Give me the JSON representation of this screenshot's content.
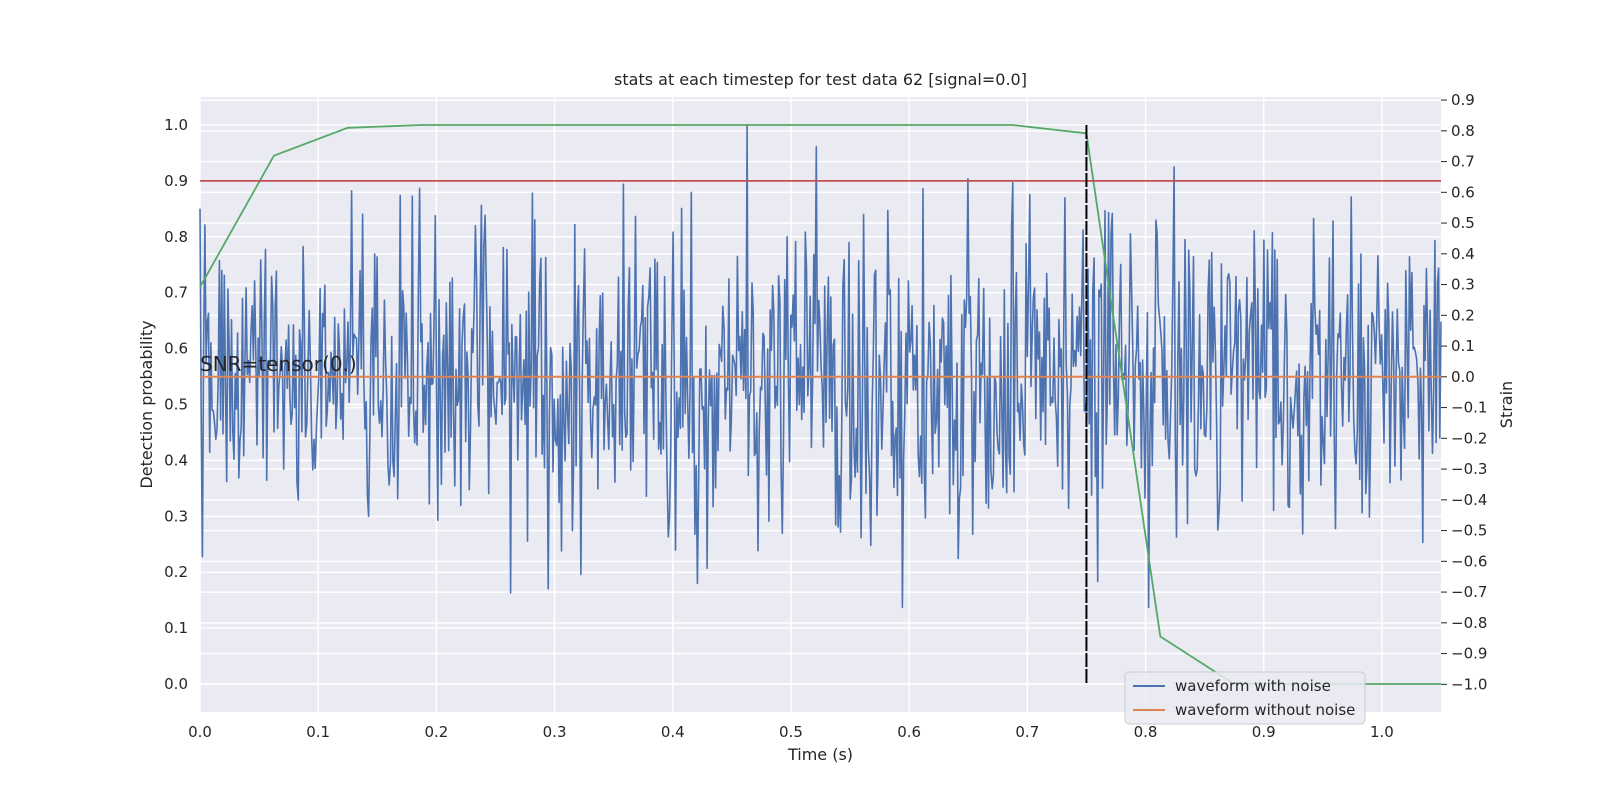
{
  "chart_data": {
    "type": "line",
    "title": "stats at each timestep for test data 62 [signal=0.0]",
    "xlabel": "Time (s)",
    "ylabel": "Detection probability",
    "ylabel_right": "Strain",
    "xlim": [
      0.0,
      1.05
    ],
    "ylim": [
      -0.05,
      1.05
    ],
    "ylim_right": [
      -1.09,
      0.91
    ],
    "x_ticks": [
      "0.0",
      "0.1",
      "0.2",
      "0.3",
      "0.4",
      "0.5",
      "0.6",
      "0.7",
      "0.8",
      "0.9",
      "1.0"
    ],
    "y_ticks": [
      "0.0",
      "0.1",
      "0.2",
      "0.3",
      "0.4",
      "0.5",
      "0.6",
      "0.7",
      "0.8",
      "0.9",
      "1.0"
    ],
    "y_ticks_right": [
      "−1.0",
      "−0.9",
      "−0.8",
      "−0.7",
      "−0.6",
      "−0.5",
      "−0.4",
      "−0.3",
      "−0.2",
      "−0.1",
      "0.0",
      "0.1",
      "0.2",
      "0.3",
      "0.4",
      "0.5",
      "0.6",
      "0.7",
      "0.8",
      "0.9"
    ],
    "grid": true,
    "legend_position": "lower-right",
    "annotation": "SNR=tensor(0.)",
    "threshold": 0.9,
    "vline_x": 0.75,
    "series": [
      {
        "name": "waveform with noise",
        "axis": "right",
        "color": "#4c72b0",
        "note": "noisy strain, approximately zero-mean with std ~0.25, range -0.75 to 0.82",
        "x_range": [
          0.0,
          1.05
        ],
        "samples": 1024,
        "min": -0.75,
        "max": 0.82
      },
      {
        "name": "waveform without noise",
        "axis": "right",
        "color": "#dd8452",
        "x": [
          0.0,
          1.05
        ],
        "y": [
          0.0,
          0.0
        ]
      },
      {
        "axis": "left",
        "color": "#55a868",
        "x": [
          0.0,
          0.0625,
          0.125,
          0.1875,
          0.25,
          0.3125,
          0.375,
          0.4375,
          0.5,
          0.5625,
          0.625,
          0.6875,
          0.75,
          0.8125,
          0.875,
          0.9375,
          1.0,
          1.05
        ],
        "y": [
          0.71,
          0.945,
          0.995,
          1.0,
          1.0,
          1.0,
          1.0,
          1.0,
          1.0,
          1.0,
          1.0,
          1.0,
          0.985,
          0.085,
          0.0,
          0.0,
          0.0,
          0.0
        ]
      },
      {
        "axis": "left",
        "color": "#c44e52",
        "x": [
          0.0,
          1.05
        ],
        "y": [
          0.9,
          0.9
        ]
      }
    ]
  },
  "legend": {
    "items": [
      {
        "label": "waveform with noise",
        "color": "#4c72b0"
      },
      {
        "label": "waveform without noise",
        "color": "#dd8452"
      }
    ]
  },
  "colors": {
    "plot_background": "#eaeaf2",
    "grid": "#ffffff",
    "vline": "#000000"
  }
}
